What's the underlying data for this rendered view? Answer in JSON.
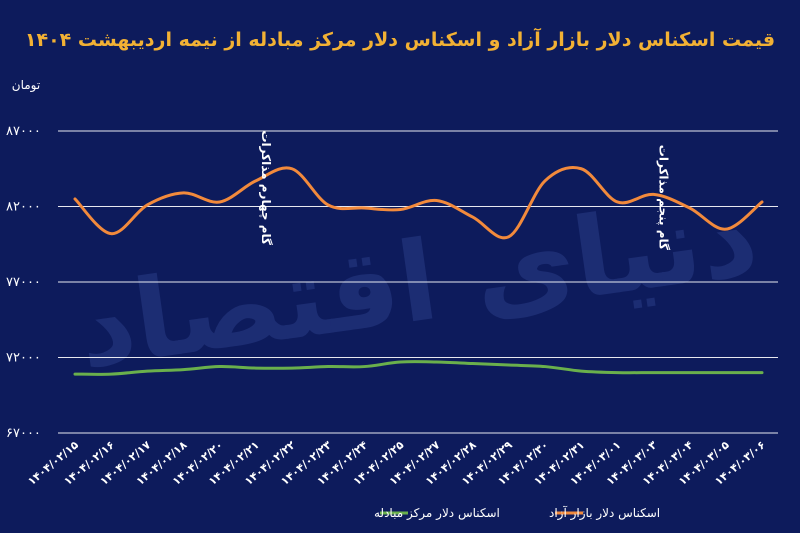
{
  "chart_data": {
    "type": "line",
    "title": "قیمت اسکناس دلار بازار آزاد و اسکناس دلار مرکز مبادله از نیمه اردیبهشت ۱۴۰۴",
    "ylabel": "تومان",
    "ylim": [
      67000,
      87000
    ],
    "yticks": [
      67000,
      72000,
      77000,
      82000,
      87000
    ],
    "ytick_labels": [
      "۶۷۰۰۰",
      "۷۲۰۰۰",
      "۷۷۰۰۰",
      "۸۲۰۰۰",
      "۸۷۰۰۰"
    ],
    "grid": true,
    "legend_position": "bottom",
    "categories": [
      "۱۴۰۴/۰۲/۱۵",
      "۱۴۰۴/۰۲/۱۶",
      "۱۴۰۴/۰۲/۱۷",
      "۱۴۰۴/۰۲/۱۸",
      "۱۴۰۴/۰۲/۲۰",
      "۱۴۰۴/۰۲/۲۱",
      "۱۴۰۴/۰۲/۲۲",
      "۱۴۰۴/۰۲/۲۳",
      "۱۴۰۴/۰۲/۲۴",
      "۱۴۰۴/۰۲/۲۵",
      "۱۴۰۴/۰۲/۲۷",
      "۱۴۰۴/۰۲/۲۸",
      "۱۴۰۴/۰۲/۲۹",
      "۱۴۰۴/۰۲/۳۰",
      "۱۴۰۴/۰۲/۳۱",
      "۱۴۰۴/۰۳/۰۱",
      "۱۴۰۴/۰۳/۰۳",
      "۱۴۰۴/۰۳/۰۴",
      "۱۴۰۴/۰۳/۰۵",
      "۱۴۰۴/۰۳/۰۶"
    ],
    "series": [
      {
        "name": "اسکناس دلار بازار آزاد",
        "color": "#f28a3c",
        "values": [
          82500,
          80200,
          82100,
          82900,
          82300,
          83700,
          84500,
          82100,
          81900,
          81800,
          82400,
          81300,
          80000,
          83700,
          84500,
          82300,
          82800,
          81900,
          80500,
          82300
        ]
      },
      {
        "name": "اسکناس دلار مرکز مبادله",
        "color": "#6ab04c",
        "values": [
          70900,
          70900,
          71100,
          71200,
          71400,
          71300,
          71300,
          71400,
          71400,
          71700,
          71700,
          71600,
          71500,
          71400,
          71100,
          71000,
          71000,
          71000,
          71000,
          71000
        ]
      }
    ],
    "annotations": [
      {
        "text": "گام چهارم مذاکرات",
        "x_index": 5
      },
      {
        "text": "گام پنجم مذاکرات",
        "x_index": 16
      }
    ]
  },
  "watermark": "دنیای اقتصاد"
}
